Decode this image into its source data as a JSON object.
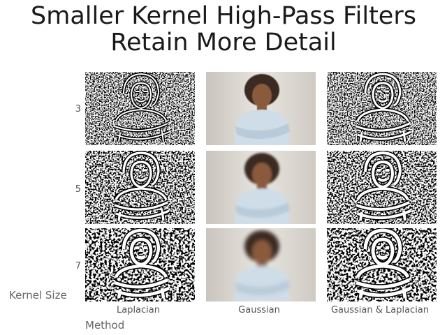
{
  "chart_data": {
    "type": "image_grid",
    "title": [
      "Smaller Kernel High-Pass Filters",
      "Retain More Detail"
    ],
    "xlabel": "Method",
    "ylabel": "Kernel Size",
    "columns": [
      "Laplacian",
      "Gaussian",
      "Gaussian & Laplacian"
    ],
    "rows": [
      "3",
      "5",
      "7"
    ],
    "panels": [
      {
        "row": "3",
        "column": "Laplacian"
      },
      {
        "row": "3",
        "column": "Gaussian"
      },
      {
        "row": "3",
        "column": "Gaussian & Laplacian"
      },
      {
        "row": "5",
        "column": "Laplacian"
      },
      {
        "row": "5",
        "column": "Gaussian"
      },
      {
        "row": "5",
        "column": "Gaussian & Laplacian"
      },
      {
        "row": "7",
        "column": "Laplacian"
      },
      {
        "row": "7",
        "column": "Gaussian"
      },
      {
        "row": "7",
        "column": "Gaussian & Laplacian"
      }
    ]
  }
}
